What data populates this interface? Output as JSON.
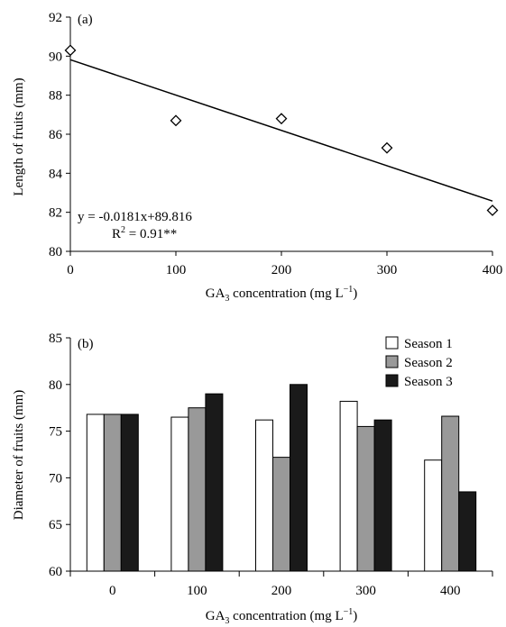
{
  "chart_data": [
    {
      "type": "scatter",
      "panel_label": "(a)",
      "xlabel": "GA",
      "xlabel_sub": "3",
      "xlabel_rest": " concentration (mg L",
      "xlabel_sup": "−1",
      "xlabel_end": ")",
      "ylabel": "Length of fruits (mm)",
      "xlim": [
        0,
        400
      ],
      "ylim": [
        80,
        92
      ],
      "xticks": [
        0,
        100,
        200,
        300,
        400
      ],
      "yticks": [
        80,
        82,
        84,
        86,
        88,
        90,
        92
      ],
      "points": [
        {
          "x": 0,
          "y": 90.3
        },
        {
          "x": 100,
          "y": 86.7
        },
        {
          "x": 200,
          "y": 86.8
        },
        {
          "x": 300,
          "y": 85.3
        },
        {
          "x": 400,
          "y": 82.1
        }
      ],
      "trendline": {
        "slope": -0.0181,
        "intercept": 89.816
      },
      "equation": "y = -0.0181x+89.816",
      "r2_prefix": "R",
      "r2_sup": "2",
      "r2_rest": " = 0.91**",
      "marker": "diamond",
      "grid": false
    },
    {
      "type": "bar",
      "panel_label": "(b)",
      "xlabel": "GA",
      "xlabel_sub": "3",
      "xlabel_rest": " concentration (mg L",
      "xlabel_sup": "−1",
      "xlabel_end": ")",
      "ylabel": "Diameter of fruits (mm)",
      "ylim": [
        60,
        85
      ],
      "yticks": [
        60,
        65,
        70,
        75,
        80,
        85
      ],
      "categories": [
        "0",
        "100",
        "200",
        "300",
        "400"
      ],
      "series": [
        {
          "name": "Season 1",
          "color": "#ffffff",
          "values": [
            76.8,
            76.5,
            76.2,
            78.2,
            71.9
          ]
        },
        {
          "name": "Season 2",
          "color": "#999999",
          "values": [
            76.8,
            77.5,
            72.2,
            75.5,
            76.6
          ]
        },
        {
          "name": "Season 3",
          "color": "#1a1a1a",
          "values": [
            76.8,
            79.0,
            80.0,
            76.2,
            68.5
          ]
        }
      ],
      "legend_position": "top-right",
      "grid": false
    }
  ]
}
